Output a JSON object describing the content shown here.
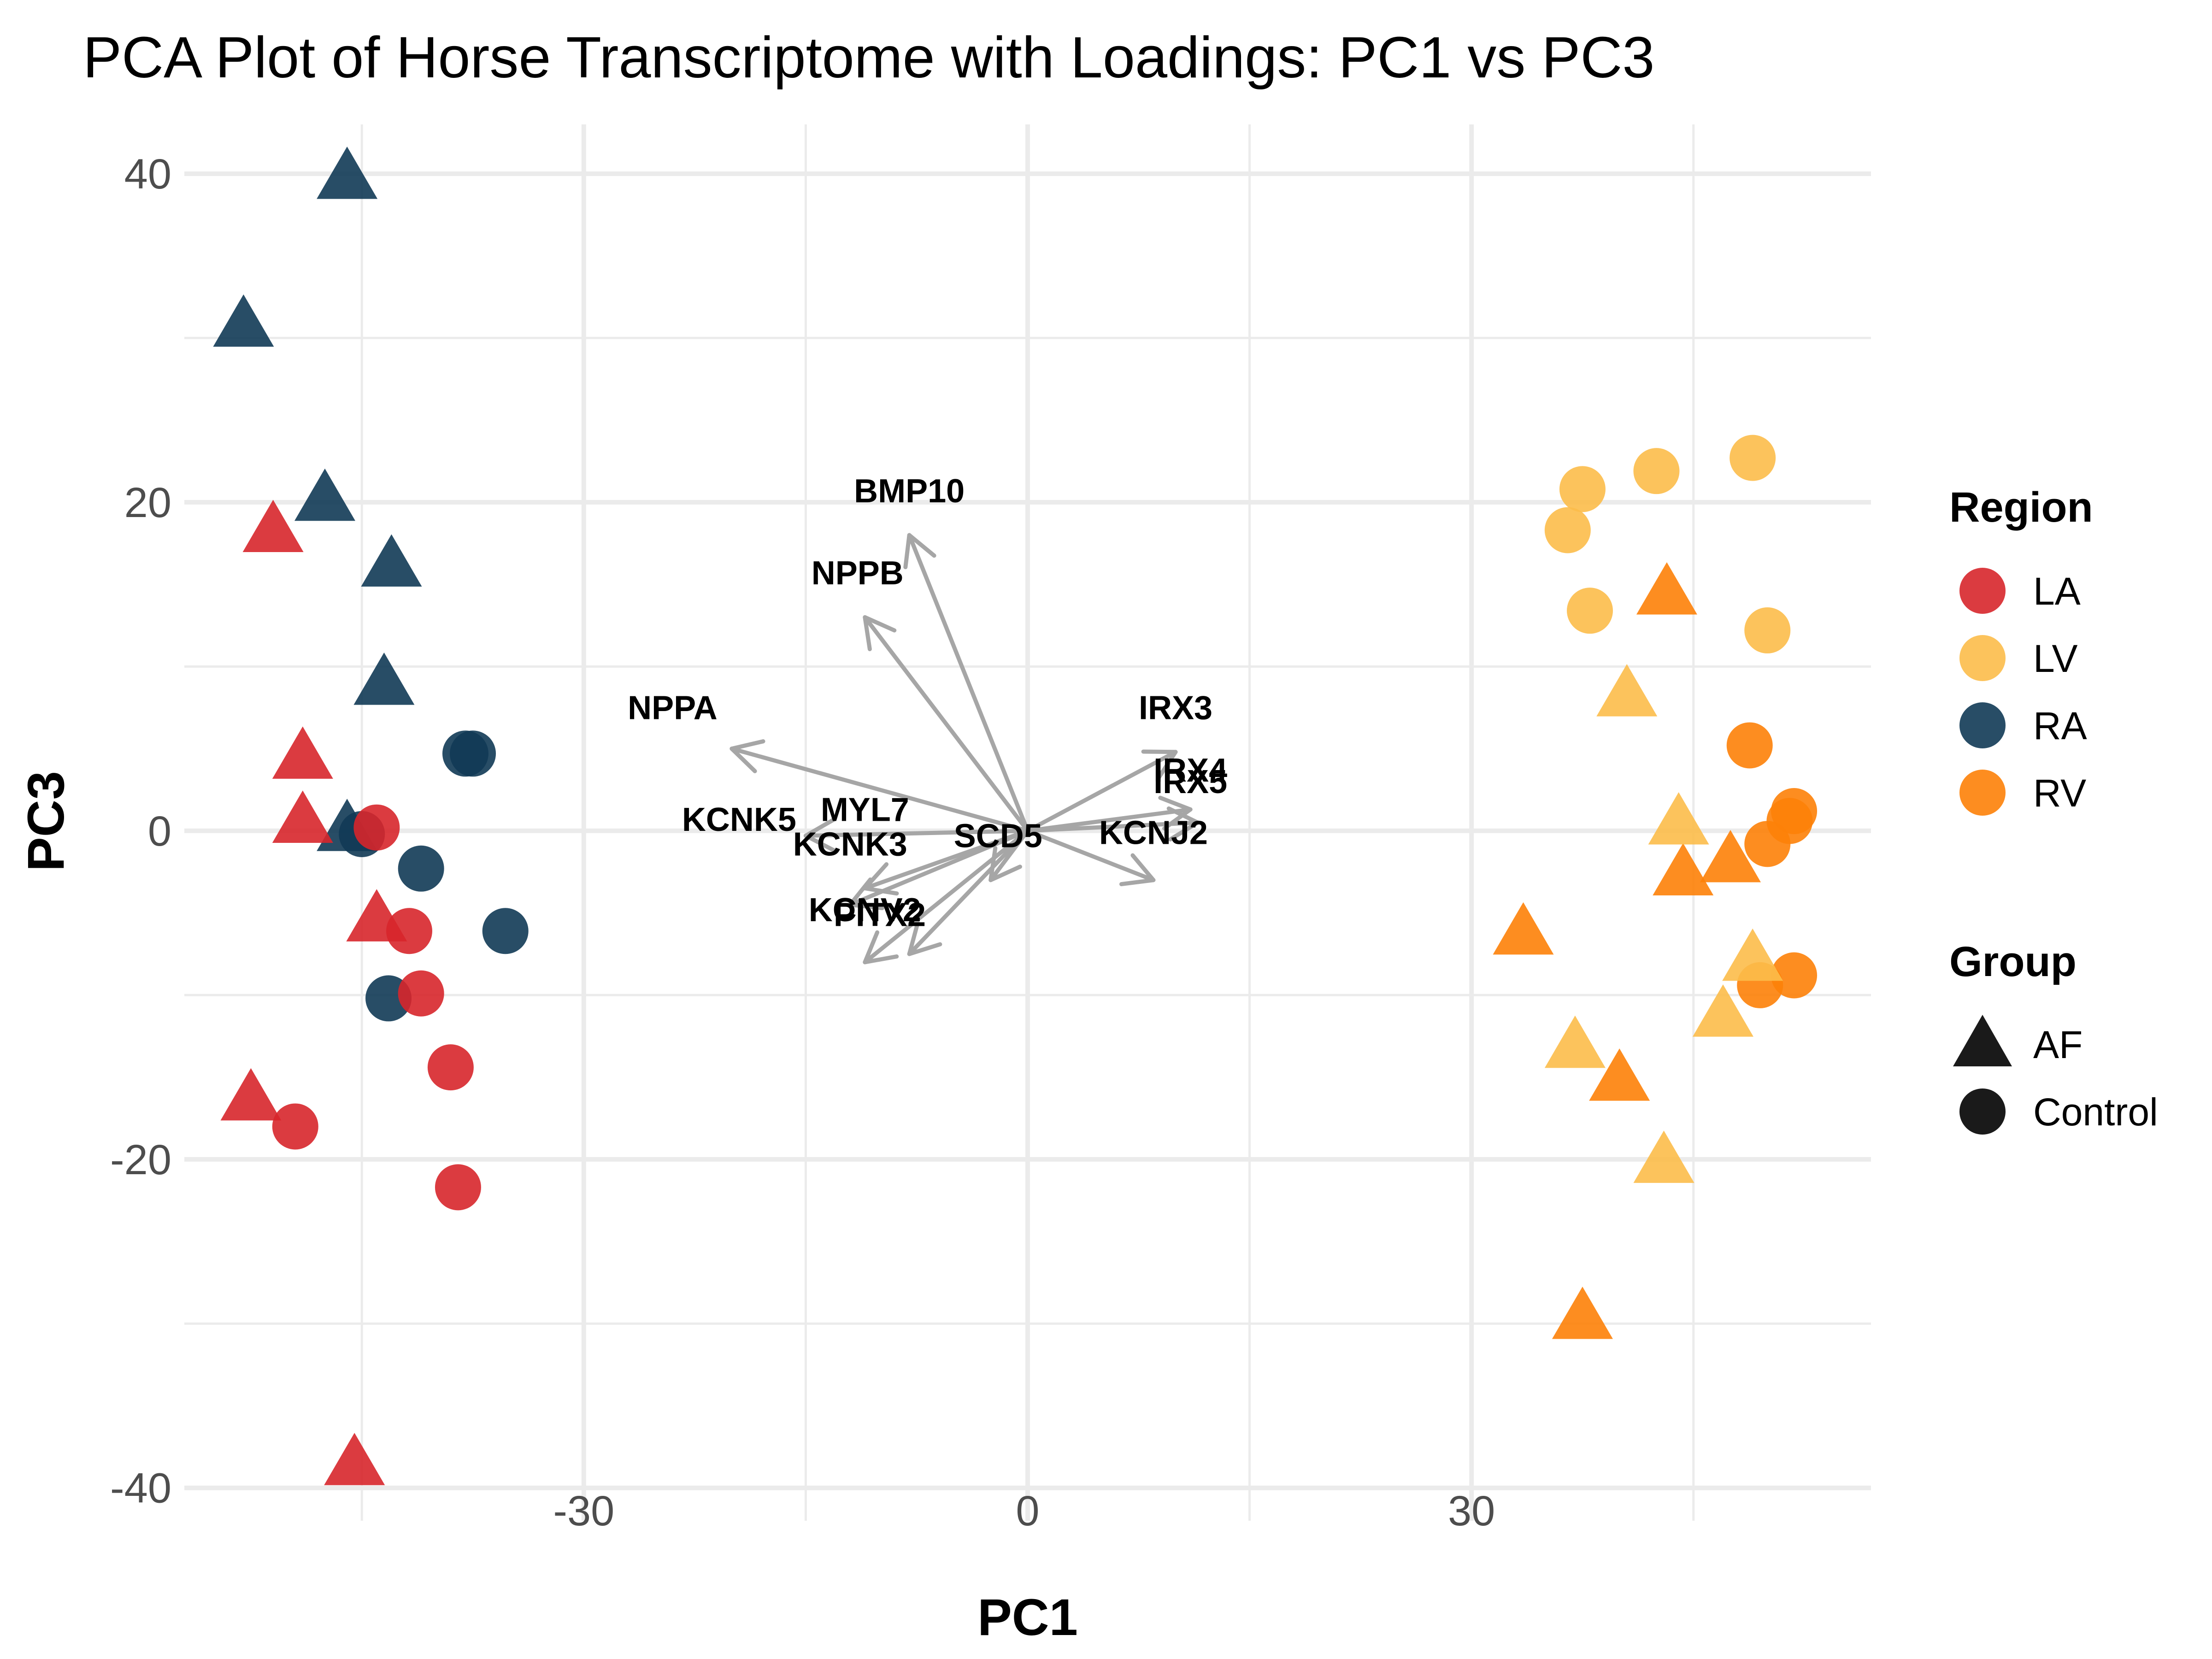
{
  "chart_data": {
    "type": "scatter",
    "title": "PCA Plot of Horse Transcriptome with Loadings: PC1 vs PC3",
    "xlabel": "PC1",
    "ylabel": "PC3",
    "xlim": [
      -57,
      57
    ],
    "ylim": [
      -42,
      43
    ],
    "x_ticks": [
      -30,
      0,
      30
    ],
    "y_ticks": [
      -40,
      -20,
      0,
      20,
      40
    ],
    "grid": true,
    "legend_position": "right",
    "colors": {
      "LA": "#d7262b",
      "LV": "#fcbc4a",
      "RA": "#113a55",
      "RV": "#fd8108",
      "arrow": "#a6a6a6",
      "grid": "#ebebeb"
    },
    "legends": [
      {
        "title": "Region",
        "kind": "color",
        "entries": [
          "LA",
          "LV",
          "RA",
          "RV"
        ]
      },
      {
        "title": "Group",
        "kind": "shape",
        "entries": [
          "AF",
          "Control"
        ]
      }
    ],
    "points": [
      {
        "region": "RA",
        "group": "AF",
        "x": -46,
        "y": 39.8
      },
      {
        "region": "RA",
        "group": "AF",
        "x": -53,
        "y": 30.8
      },
      {
        "region": "RA",
        "group": "AF",
        "x": -47.5,
        "y": 20.2
      },
      {
        "region": "RA",
        "group": "AF",
        "x": -43,
        "y": 16.2
      },
      {
        "region": "RA",
        "group": "AF",
        "x": -43.5,
        "y": 9
      },
      {
        "region": "RA",
        "group": "AF",
        "x": -46,
        "y": 0.1
      },
      {
        "region": "LA",
        "group": "AF",
        "x": -51,
        "y": 18.3
      },
      {
        "region": "LA",
        "group": "AF",
        "x": -49,
        "y": 4.5
      },
      {
        "region": "LA",
        "group": "AF",
        "x": -49,
        "y": 0.6
      },
      {
        "region": "LA",
        "group": "AF",
        "x": -44,
        "y": -5.4
      },
      {
        "region": "LA",
        "group": "AF",
        "x": -52.5,
        "y": -16.3
      },
      {
        "region": "LA",
        "group": "AF",
        "x": -45.5,
        "y": -38.5
      },
      {
        "region": "RA",
        "group": "Control",
        "x": -38,
        "y": 4.7
      },
      {
        "region": "RA",
        "group": "Control",
        "x": -37.5,
        "y": 4.7
      },
      {
        "region": "RA",
        "group": "Control",
        "x": -45,
        "y": -0.2
      },
      {
        "region": "RA",
        "group": "Control",
        "x": -41,
        "y": -2.3
      },
      {
        "region": "RA",
        "group": "Control",
        "x": -35.3,
        "y": -6.1
      },
      {
        "region": "RA",
        "group": "Control",
        "x": -43.2,
        "y": -10.2
      },
      {
        "region": "LA",
        "group": "Control",
        "x": -44,
        "y": 0.2
      },
      {
        "region": "LA",
        "group": "Control",
        "x": -41.8,
        "y": -6.1
      },
      {
        "region": "LA",
        "group": "Control",
        "x": -41,
        "y": -9.9
      },
      {
        "region": "LA",
        "group": "Control",
        "x": -39,
        "y": -14.4
      },
      {
        "region": "LA",
        "group": "Control",
        "x": -49.5,
        "y": -18
      },
      {
        "region": "LA",
        "group": "Control",
        "x": -38.5,
        "y": -21.7
      },
      {
        "region": "LV",
        "group": "Control",
        "x": 37.5,
        "y": 20.8
      },
      {
        "region": "LV",
        "group": "Control",
        "x": 42.5,
        "y": 21.9
      },
      {
        "region": "LV",
        "group": "Control",
        "x": 49,
        "y": 22.7
      },
      {
        "region": "LV",
        "group": "Control",
        "x": 36.5,
        "y": 18.3
      },
      {
        "region": "LV",
        "group": "Control",
        "x": 38,
        "y": 13.4
      },
      {
        "region": "LV",
        "group": "Control",
        "x": 50,
        "y": 12.2
      },
      {
        "region": "RV",
        "group": "Control",
        "x": 48.8,
        "y": 5.2
      },
      {
        "region": "RV",
        "group": "Control",
        "x": 51.8,
        "y": 1.2
      },
      {
        "region": "RV",
        "group": "Control",
        "x": 51.5,
        "y": 0.6
      },
      {
        "region": "RV",
        "group": "Control",
        "x": 50,
        "y": -0.8
      },
      {
        "region": "RV",
        "group": "Control",
        "x": 51.8,
        "y": -8.8
      },
      {
        "region": "RV",
        "group": "Control",
        "x": 49.5,
        "y": -9.4
      },
      {
        "region": "RV",
        "group": "AF",
        "x": 43.2,
        "y": 14.5
      },
      {
        "region": "RV",
        "group": "AF",
        "x": 47.5,
        "y": -1.8
      },
      {
        "region": "RV",
        "group": "AF",
        "x": 44.3,
        "y": -2.6
      },
      {
        "region": "RV",
        "group": "AF",
        "x": 33.5,
        "y": -6.2
      },
      {
        "region": "RV",
        "group": "AF",
        "x": 40,
        "y": -15.1
      },
      {
        "region": "RV",
        "group": "AF",
        "x": 37.5,
        "y": -29.6
      },
      {
        "region": "LV",
        "group": "AF",
        "x": 40.5,
        "y": 8.3
      },
      {
        "region": "LV",
        "group": "AF",
        "x": 44,
        "y": 0.5
      },
      {
        "region": "LV",
        "group": "AF",
        "x": 49,
        "y": -7.8
      },
      {
        "region": "LV",
        "group": "AF",
        "x": 47,
        "y": -11.2
      },
      {
        "region": "LV",
        "group": "AF",
        "x": 37,
        "y": -13.1
      },
      {
        "region": "LV",
        "group": "AF",
        "x": 43,
        "y": -20.1
      }
    ],
    "loadings": [
      {
        "gene": "BMP10",
        "x": -8,
        "y": 18,
        "label_x": -8,
        "label_y": 20
      },
      {
        "gene": "NPPB",
        "x": -11,
        "y": 13,
        "label_x": -11.5,
        "label_y": 15
      },
      {
        "gene": "NPPA",
        "x": -20,
        "y": 5,
        "label_x": -24,
        "label_y": 6.8
      },
      {
        "gene": "IRX3",
        "x": 10,
        "y": 4.8,
        "label_x": 10,
        "label_y": 6.8
      },
      {
        "gene": "IRX4",
        "x": 11,
        "y": 1.3,
        "label_x": 11,
        "label_y": 3
      },
      {
        "gene": "IRX5",
        "x": 11.5,
        "y": 0.5,
        "label_x": 11,
        "label_y": 2.3
      },
      {
        "gene": "KCNJ2",
        "x": 8.5,
        "y": -3,
        "label_x": 8.5,
        "label_y": -0.8
      },
      {
        "gene": "KCNK5",
        "x": -15,
        "y": -0.3,
        "label_x": -19.5,
        "label_y": 0
      },
      {
        "gene": "MYL7",
        "x": -11,
        "y": -3.5,
        "label_x": -11,
        "label_y": 0.6
      },
      {
        "gene": "KCNK3",
        "x": -12,
        "y": -4.5,
        "label_x": -12,
        "label_y": -1.5
      },
      {
        "gene": "SCD5",
        "x": -2.5,
        "y": -3,
        "label_x": -2,
        "label_y": -1
      },
      {
        "gene": "KCNV2",
        "x": -11,
        "y": -8,
        "label_x": -11,
        "label_y": -5.5
      },
      {
        "gene": "PITX2",
        "x": -8,
        "y": -7.5,
        "label_x": -10,
        "label_y": -5.8
      }
    ]
  }
}
